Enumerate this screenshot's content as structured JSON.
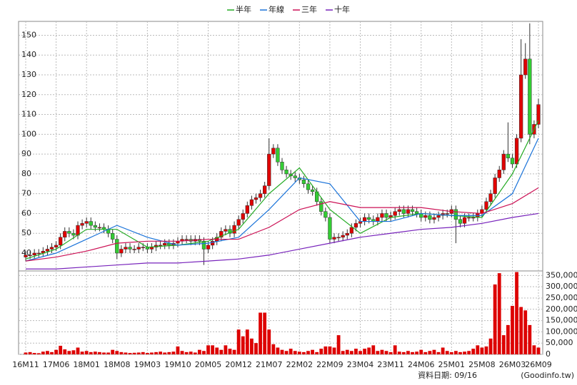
{
  "chart_data": {
    "type": "candlestick",
    "categories": [
      "16M11",
      null,
      null,
      null,
      null,
      null,
      null,
      "17M06",
      null,
      null,
      null,
      null,
      null,
      null,
      "18M01",
      null,
      null,
      null,
      null,
      null,
      null,
      "18M08",
      null,
      null,
      null,
      null,
      null,
      null,
      "19M03",
      null,
      null,
      null,
      null,
      null,
      null,
      "19M10",
      null,
      null,
      null,
      null,
      null,
      null,
      "20M05",
      null,
      null,
      null,
      null,
      null,
      null,
      "20M12",
      null,
      null,
      null,
      null,
      null,
      null,
      "21M07",
      null,
      null,
      null,
      null,
      null,
      null,
      "22M02",
      null,
      null,
      null,
      null,
      null,
      null,
      "22M09",
      null,
      null,
      null,
      null,
      null,
      null,
      "23M04",
      null,
      null,
      null,
      null,
      null,
      null,
      "23M11",
      null,
      null,
      null,
      null,
      null,
      null,
      "24M06",
      null,
      null,
      null,
      null,
      null,
      null,
      "25M01",
      null,
      null,
      null,
      null,
      null,
      null,
      "25M08",
      null,
      null,
      null,
      null,
      null,
      null,
      "26M03",
      null,
      null,
      null,
      null,
      null,
      "26M09"
    ],
    "open": [
      38,
      39,
      39,
      40,
      40,
      41,
      42,
      43,
      44,
      48,
      51,
      50,
      49,
      54,
      55,
      56,
      54,
      53,
      53,
      52,
      50,
      47,
      40,
      42,
      43,
      42,
      42,
      43,
      43,
      42,
      43,
      44,
      44,
      45,
      44,
      45,
      46,
      47,
      47,
      46,
      47,
      46,
      42,
      44,
      46,
      48,
      51,
      52,
      50,
      54,
      57,
      60,
      64,
      67,
      68,
      70,
      74,
      90,
      93,
      86,
      82,
      80,
      79,
      78,
      77,
      75,
      72,
      71,
      66,
      61,
      58,
      47,
      48,
      48,
      49,
      50,
      53,
      55,
      56,
      58,
      57,
      56,
      58,
      60,
      58,
      59,
      61,
      62,
      60,
      62,
      61,
      60,
      58,
      59,
      57,
      58,
      59,
      60,
      60,
      62,
      57,
      55,
      58,
      58,
      58,
      60,
      62,
      66,
      70,
      78,
      82,
      90,
      88,
      85,
      98,
      130,
      138,
      100,
      105
    ],
    "high": [
      41,
      41,
      42,
      42,
      43,
      44,
      45,
      46,
      50,
      53,
      53,
      52,
      56,
      57,
      58,
      58,
      56,
      55,
      55,
      54,
      52,
      49,
      44,
      45,
      45,
      44,
      45,
      45,
      45,
      45,
      46,
      46,
      47,
      47,
      47,
      48,
      49,
      49,
      49,
      49,
      49,
      48,
      46,
      48,
      50,
      53,
      54,
      54,
      56,
      59,
      62,
      66,
      69,
      70,
      72,
      76,
      98,
      95,
      95,
      88,
      84,
      82,
      81,
      80,
      79,
      77,
      74,
      73,
      68,
      63,
      60,
      50,
      50,
      51,
      52,
      55,
      57,
      58,
      60,
      60,
      59,
      60,
      62,
      62,
      61,
      63,
      64,
      64,
      64,
      64,
      63,
      62,
      61,
      61,
      60,
      61,
      62,
      62,
      64,
      64,
      59,
      60,
      60,
      60,
      62,
      64,
      68,
      72,
      80,
      84,
      92,
      106,
      90,
      100,
      148,
      146,
      156,
      107,
      118
    ],
    "low": [
      36,
      37,
      37,
      38,
      38,
      39,
      40,
      41,
      42,
      46,
      48,
      47,
      47,
      52,
      53,
      52,
      51,
      51,
      50,
      48,
      45,
      37,
      38,
      40,
      40,
      40,
      40,
      41,
      40,
      40,
      41,
      42,
      42,
      42,
      42,
      43,
      44,
      45,
      44,
      44,
      44,
      34,
      40,
      42,
      44,
      46,
      49,
      48,
      48,
      52,
      55,
      58,
      62,
      65,
      66,
      68,
      72,
      88,
      84,
      80,
      78,
      77,
      76,
      75,
      73,
      70,
      69,
      64,
      59,
      56,
      45,
      45,
      46,
      46,
      47,
      48,
      51,
      53,
      54,
      55,
      54,
      54,
      56,
      56,
      56,
      57,
      59,
      58,
      58,
      59,
      58,
      56,
      56,
      55,
      55,
      56,
      57,
      58,
      58,
      45,
      53,
      53,
      56,
      56,
      56,
      58,
      60,
      64,
      68,
      76,
      80,
      86,
      83,
      83,
      96,
      128,
      95,
      98,
      103
    ],
    "close": [
      39,
      39,
      40,
      40,
      41,
      42,
      43,
      44,
      48,
      51,
      50,
      49,
      54,
      55,
      56,
      54,
      53,
      53,
      52,
      50,
      47,
      40,
      42,
      43,
      42,
      42,
      43,
      43,
      42,
      43,
      44,
      44,
      45,
      44,
      45,
      46,
      47,
      47,
      46,
      47,
      46,
      42,
      44,
      46,
      48,
      51,
      52,
      50,
      54,
      57,
      60,
      64,
      67,
      68,
      70,
      74,
      90,
      93,
      86,
      82,
      80,
      79,
      78,
      77,
      75,
      72,
      71,
      66,
      61,
      58,
      47,
      48,
      48,
      49,
      50,
      53,
      55,
      56,
      58,
      57,
      56,
      58,
      60,
      58,
      59,
      61,
      62,
      60,
      62,
      61,
      60,
      58,
      59,
      57,
      58,
      59,
      60,
      60,
      62,
      57,
      55,
      58,
      58,
      58,
      60,
      62,
      66,
      70,
      78,
      82,
      90,
      88,
      85,
      98,
      130,
      138,
      100,
      105,
      115
    ],
    "volume": [
      8000,
      10000,
      6000,
      5000,
      12000,
      15000,
      10000,
      20000,
      38000,
      22000,
      15000,
      18000,
      30000,
      12000,
      15000,
      10000,
      12000,
      10000,
      8000,
      8000,
      20000,
      15000,
      10000,
      8000,
      6000,
      7000,
      8000,
      10000,
      6000,
      8000,
      10000,
      12000,
      8000,
      10000,
      12000,
      35000,
      15000,
      10000,
      12000,
      8000,
      20000,
      15000,
      40000,
      40000,
      30000,
      20000,
      40000,
      25000,
      20000,
      110000,
      80000,
      110000,
      70000,
      50000,
      185000,
      185000,
      110000,
      45000,
      30000,
      20000,
      15000,
      25000,
      15000,
      12000,
      10000,
      15000,
      20000,
      10000,
      25000,
      35000,
      35000,
      30000,
      85000,
      15000,
      20000,
      15000,
      25000,
      15000,
      25000,
      30000,
      40000,
      15000,
      20000,
      15000,
      10000,
      40000,
      12000,
      10000,
      15000,
      10000,
      12000,
      20000,
      10000,
      15000,
      20000,
      10000,
      30000,
      15000,
      10000,
      15000,
      10000,
      12000,
      15000,
      25000,
      40000,
      30000,
      35000,
      70000,
      310000,
      360000,
      85000,
      130000,
      215000,
      365000,
      210000,
      195000,
      130000,
      40000,
      30000
    ],
    "up_color": "#e00000",
    "down_color": "#33cc33",
    "volume_color": "#dd0000",
    "series": [
      {
        "name": "半年",
        "color": "#22aa22",
        "x": [
          "16M11",
          "17M06",
          "18M01",
          "18M08",
          "19M03",
          "19M10",
          "20M05",
          "20M12",
          "21M07",
          "22M02",
          "22M09",
          "23M04",
          "23M11",
          "24M06",
          "25M01",
          "25M08",
          "26M03",
          "26M09"
        ],
        "values": [
          37,
          42,
          52,
          52,
          43,
          44,
          46,
          52,
          70,
          83,
          62,
          50,
          58,
          60,
          59,
          58,
          80,
          107
        ]
      },
      {
        "name": "年線",
        "color": "#1a73d9",
        "x": [
          "16M11",
          "17M06",
          "18M01",
          "18M08",
          "19M03",
          "19M10",
          "20M05",
          "20M12",
          "21M07",
          "22M02",
          "22M09",
          "23M04",
          "23M11",
          "24M06",
          "25M01",
          "25M08",
          "26M03",
          "26M09"
        ],
        "values": [
          36,
          40,
          47,
          54,
          48,
          44,
          45,
          48,
          62,
          78,
          75,
          56,
          56,
          60,
          59,
          59,
          70,
          98
        ]
      },
      {
        "name": "三年",
        "color": "#cc1155",
        "x": [
          "16M11",
          "17M06",
          "18M01",
          "18M08",
          "19M03",
          "19M10",
          "20M05",
          "20M12",
          "21M07",
          "22M02",
          "22M09",
          "23M04",
          "23M11",
          "24M06",
          "25M01",
          "25M08",
          "26M03",
          "26M09"
        ],
        "values": [
          36,
          38,
          41,
          45,
          46,
          46,
          47,
          47,
          53,
          62,
          66,
          63,
          63,
          63,
          61,
          60,
          65,
          73
        ]
      },
      {
        "name": "十年",
        "color": "#7722bb",
        "x": [
          "16M11",
          "17M06",
          "18M01",
          "18M08",
          "19M03",
          "19M10",
          "20M05",
          "20M12",
          "21M07",
          "22M02",
          "22M09",
          "23M04",
          "23M11",
          "24M06",
          "25M01",
          "25M08",
          "26M03",
          "26M09"
        ],
        "values": [
          32,
          32,
          33,
          34,
          35,
          35,
          36,
          37,
          39,
          42,
          45,
          48,
          50,
          52,
          53,
          55,
          58,
          60
        ]
      }
    ],
    "ylim": [
      31,
      157
    ],
    "yticks": [
      40,
      50,
      60,
      70,
      80,
      90,
      100,
      110,
      120,
      130,
      140,
      150
    ],
    "y2lim": [
      0,
      370000
    ],
    "y2ticks": [
      0,
      {
        "value": 50000,
        "label": "50,000"
      },
      {
        "value": 100000,
        "label": "100,000"
      },
      {
        "value": 150000,
        "label": "150,000"
      },
      {
        "value": 200000,
        "label": "200,000"
      },
      {
        "value": 250000,
        "label": "250,000"
      },
      {
        "value": 300000,
        "label": "300,000"
      },
      {
        "value": 350000,
        "label": "350,000"
      }
    ],
    "grid": true,
    "legend": "top",
    "date_note": "資料日期: 09/16",
    "source": "(Goodinfo.tw)"
  }
}
